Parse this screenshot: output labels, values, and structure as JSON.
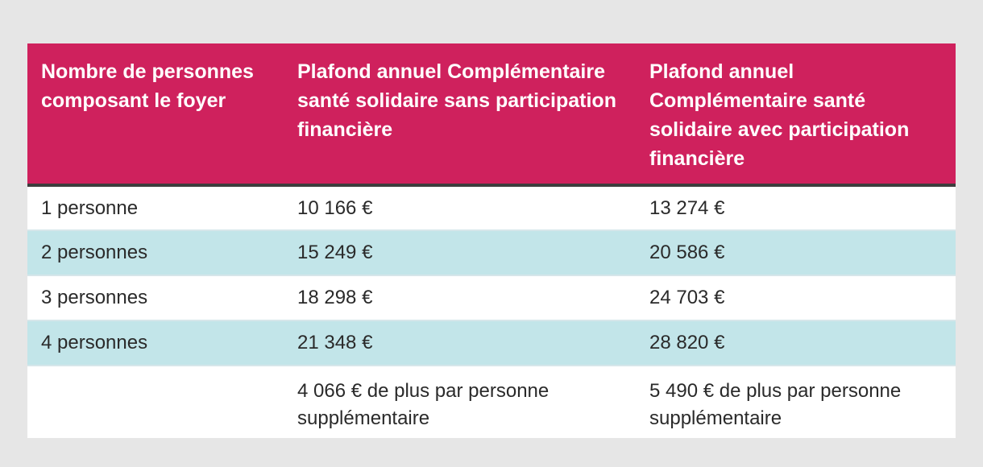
{
  "table": {
    "headers": [
      "Nombre de personnes composant le foyer",
      "Plafond annuel Complémentaire santé solidaire sans participation financière",
      "Plafond annuel Complémentaire santé solidaire avec participation financière"
    ],
    "rows": [
      [
        "1 personne",
        "10 166 €",
        "13 274 €"
      ],
      [
        "2 personnes",
        "15 249 €",
        "20 586 €"
      ],
      [
        "3 personnes",
        "18 298 €",
        "24 703 €"
      ],
      [
        "4 personnes",
        "21 348 €",
        "28 820 €"
      ],
      [
        "",
        "4 066 € de plus par personne supplémentaire",
        "5 490 € de plus par personne supplémentaire"
      ]
    ]
  },
  "colors": {
    "header_bg": "#cf215d",
    "alt_row_bg": "#c2e5e9",
    "page_bg": "#e6e6e6"
  }
}
